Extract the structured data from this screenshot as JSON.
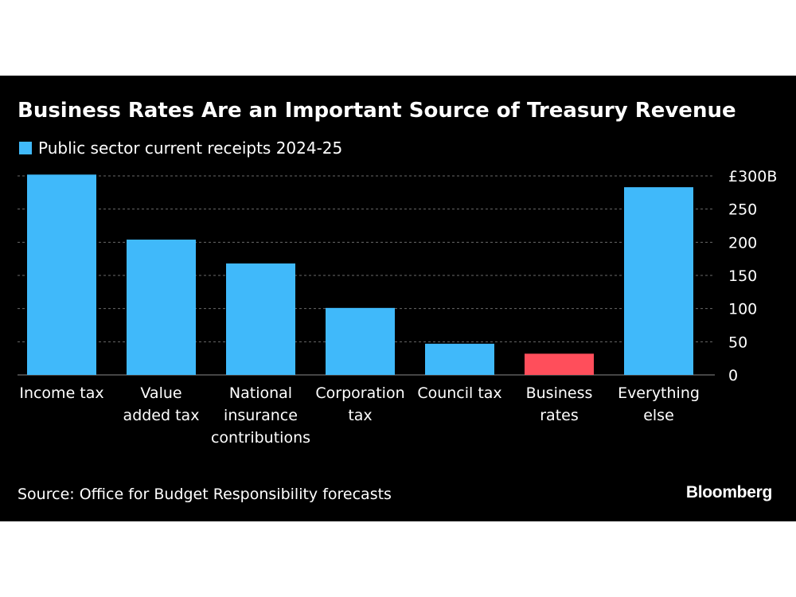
{
  "chart_data": {
    "type": "bar",
    "title": "Business Rates Are an Important Source of Treasury Revenue",
    "legend": [
      {
        "name": "Public sector current receipts 2024-25",
        "color": "#40b9fa"
      }
    ],
    "categories": [
      [
        "Income tax"
      ],
      [
        "Value",
        "added tax"
      ],
      [
        "National",
        "insurance",
        "contributions"
      ],
      [
        "Corporation",
        "tax"
      ],
      [
        "Council tax"
      ],
      [
        "Business",
        "rates"
      ],
      [
        "Everything",
        "else"
      ]
    ],
    "values": [
      302,
      204,
      168,
      101,
      47,
      32,
      283
    ],
    "bar_colors": [
      "#40b9fa",
      "#40b9fa",
      "#40b9fa",
      "#40b9fa",
      "#40b9fa",
      "#ff4e5b",
      "#40b9fa"
    ],
    "ylim": [
      0,
      300
    ],
    "yticks": [
      0,
      50,
      100,
      150,
      200,
      250,
      300
    ],
    "ytick_labels": [
      "0",
      "50",
      "100",
      "150",
      "200",
      "250",
      "£300B"
    ],
    "xlabel": "",
    "ylabel": "",
    "grid": true,
    "y_axis_position": "right"
  },
  "source": "Source: Office for Budget Responsibility forecasts",
  "brand": "Bloomberg",
  "colors": {
    "background": "#000000",
    "primary_bar": "#40b9fa",
    "highlight_bar": "#ff4e5b",
    "grid": "#6a6a6a",
    "text": "#ffffff"
  }
}
